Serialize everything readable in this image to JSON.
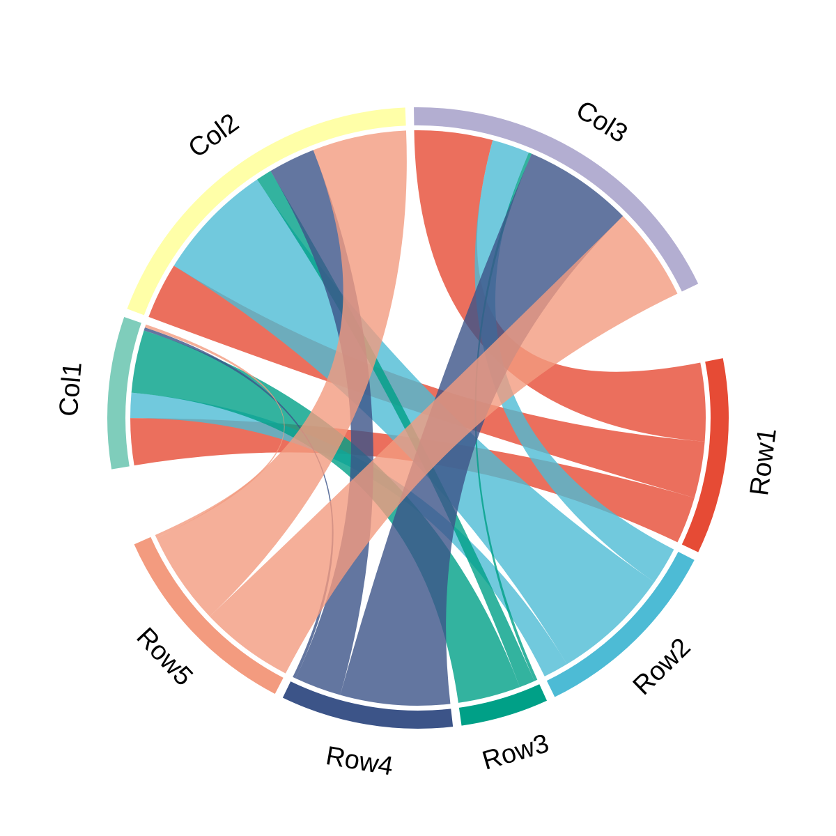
{
  "chart_data": {
    "type": "chord",
    "sectors": [
      {
        "name": "Row1",
        "group": "row",
        "color": "#E64B35"
      },
      {
        "name": "Row2",
        "group": "row",
        "color": "#4DBBD5"
      },
      {
        "name": "Row3",
        "group": "row",
        "color": "#00A087"
      },
      {
        "name": "Row4",
        "group": "row",
        "color": "#3C5488"
      },
      {
        "name": "Row5",
        "group": "row",
        "color": "#F39B7F"
      },
      {
        "name": "Col1",
        "group": "col",
        "color": "#7FCDBB"
      },
      {
        "name": "Col2",
        "group": "col",
        "color": "#FFFFA8"
      },
      {
        "name": "Col3",
        "group": "col",
        "color": "#B3AED1"
      }
    ],
    "matrix": {
      "rows": [
        "Row1",
        "Row2",
        "Row3",
        "Row4",
        "Row5"
      ],
      "columns": [
        "Col1",
        "Col2",
        "Col3"
      ],
      "values": [
        [
          15,
          18,
          25
        ],
        [
          8,
          38,
          12
        ],
        [
          20,
          5,
          1
        ],
        [
          1,
          15,
          35
        ],
        [
          1,
          30,
          30
        ]
      ]
    },
    "link_colors_follow": "rows",
    "link_opacity": 0.8
  }
}
